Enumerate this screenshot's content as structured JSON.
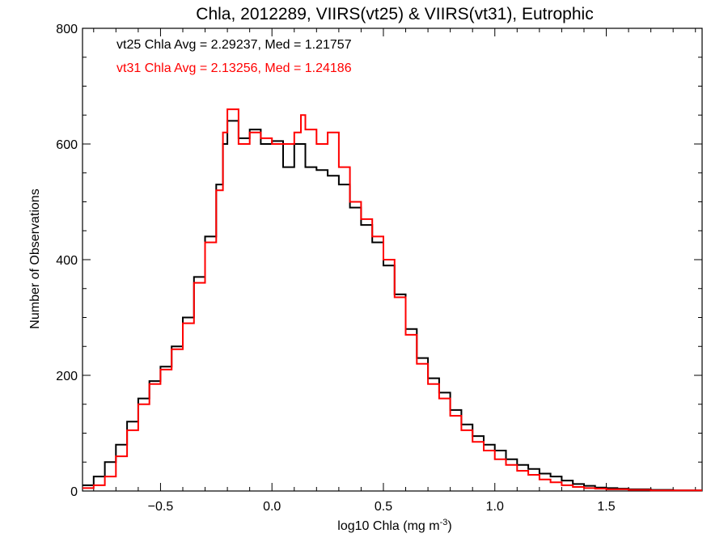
{
  "chart_data": {
    "type": "histogram",
    "title": "Chla, 2012289, VIIRS(vt25) & VIIRS(vt31), Eutrophic",
    "xlabel": "log10 Chla (mg m",
    "xlabel_sup": "-3",
    "xlabel_close": ")",
    "ylabel": "Number of Observations",
    "xlim": [
      -0.85,
      1.93
    ],
    "ylim": [
      0,
      800
    ],
    "x_ticks": [
      -0.5,
      0.0,
      0.5,
      1.0,
      1.5
    ],
    "x_tick_labels": [
      "−0.5",
      "0.0",
      "0.5",
      "1.0",
      "1.5"
    ],
    "y_ticks": [
      0,
      200,
      400,
      600,
      800
    ],
    "y_tick_labels": [
      "0",
      "200",
      "400",
      "600",
      "800"
    ],
    "grid": false,
    "series": [
      {
        "name": "vt25",
        "color": "#000000",
        "points": [
          [
            -0.85,
            10
          ],
          [
            -0.8,
            25
          ],
          [
            -0.75,
            50
          ],
          [
            -0.7,
            80
          ],
          [
            -0.65,
            120
          ],
          [
            -0.6,
            160
          ],
          [
            -0.55,
            190
          ],
          [
            -0.5,
            215
          ],
          [
            -0.45,
            250
          ],
          [
            -0.4,
            300
          ],
          [
            -0.35,
            370
          ],
          [
            -0.3,
            440
          ],
          [
            -0.25,
            530
          ],
          [
            -0.22,
            600
          ],
          [
            -0.2,
            640
          ],
          [
            -0.15,
            610
          ],
          [
            -0.1,
            625
          ],
          [
            -0.05,
            600
          ],
          [
            0.0,
            605
          ],
          [
            0.05,
            560
          ],
          [
            0.1,
            600
          ],
          [
            0.15,
            560
          ],
          [
            0.2,
            555
          ],
          [
            0.25,
            545
          ],
          [
            0.3,
            530
          ],
          [
            0.35,
            490
          ],
          [
            0.4,
            460
          ],
          [
            0.45,
            430
          ],
          [
            0.5,
            390
          ],
          [
            0.55,
            340
          ],
          [
            0.6,
            280
          ],
          [
            0.65,
            230
          ],
          [
            0.7,
            195
          ],
          [
            0.75,
            170
          ],
          [
            0.8,
            140
          ],
          [
            0.85,
            115
          ],
          [
            0.9,
            95
          ],
          [
            0.95,
            80
          ],
          [
            1.0,
            70
          ],
          [
            1.05,
            55
          ],
          [
            1.1,
            45
          ],
          [
            1.15,
            38
          ],
          [
            1.2,
            30
          ],
          [
            1.25,
            25
          ],
          [
            1.3,
            18
          ],
          [
            1.35,
            12
          ],
          [
            1.4,
            9
          ],
          [
            1.45,
            6
          ],
          [
            1.5,
            5
          ],
          [
            1.55,
            4
          ],
          [
            1.6,
            3
          ],
          [
            1.7,
            2
          ],
          [
            1.8,
            1
          ],
          [
            1.9,
            1
          ]
        ]
      },
      {
        "name": "vt31",
        "color": "#ff0000",
        "points": [
          [
            -0.85,
            5
          ],
          [
            -0.8,
            10
          ],
          [
            -0.75,
            25
          ],
          [
            -0.7,
            60
          ],
          [
            -0.65,
            105
          ],
          [
            -0.6,
            150
          ],
          [
            -0.55,
            185
          ],
          [
            -0.5,
            210
          ],
          [
            -0.45,
            245
          ],
          [
            -0.4,
            290
          ],
          [
            -0.35,
            360
          ],
          [
            -0.3,
            430
          ],
          [
            -0.25,
            520
          ],
          [
            -0.22,
            620
          ],
          [
            -0.2,
            660
          ],
          [
            -0.15,
            600
          ],
          [
            -0.1,
            620
          ],
          [
            -0.05,
            610
          ],
          [
            0.0,
            600
          ],
          [
            0.05,
            600
          ],
          [
            0.1,
            620
          ],
          [
            0.13,
            650
          ],
          [
            0.15,
            625
          ],
          [
            0.2,
            600
          ],
          [
            0.25,
            620
          ],
          [
            0.3,
            560
          ],
          [
            0.35,
            500
          ],
          [
            0.4,
            470
          ],
          [
            0.45,
            440
          ],
          [
            0.5,
            400
          ],
          [
            0.55,
            335
          ],
          [
            0.6,
            270
          ],
          [
            0.65,
            220
          ],
          [
            0.7,
            185
          ],
          [
            0.75,
            160
          ],
          [
            0.8,
            130
          ],
          [
            0.85,
            105
          ],
          [
            0.9,
            85
          ],
          [
            0.95,
            70
          ],
          [
            1.0,
            55
          ],
          [
            1.05,
            45
          ],
          [
            1.1,
            35
          ],
          [
            1.15,
            28
          ],
          [
            1.2,
            20
          ],
          [
            1.25,
            15
          ],
          [
            1.3,
            10
          ],
          [
            1.35,
            7
          ],
          [
            1.4,
            5
          ],
          [
            1.45,
            4
          ],
          [
            1.5,
            3
          ],
          [
            1.6,
            2
          ],
          [
            1.7,
            1
          ],
          [
            1.8,
            1
          ],
          [
            1.9,
            1
          ]
        ]
      }
    ],
    "annotations": [
      {
        "text": "vt25 Chla Avg = 2.29237, Med = 1.21757",
        "color": "#000000"
      },
      {
        "text": "vt31 Chla Avg = 2.13256, Med = 1.24186",
        "color": "#ff0000"
      }
    ]
  }
}
